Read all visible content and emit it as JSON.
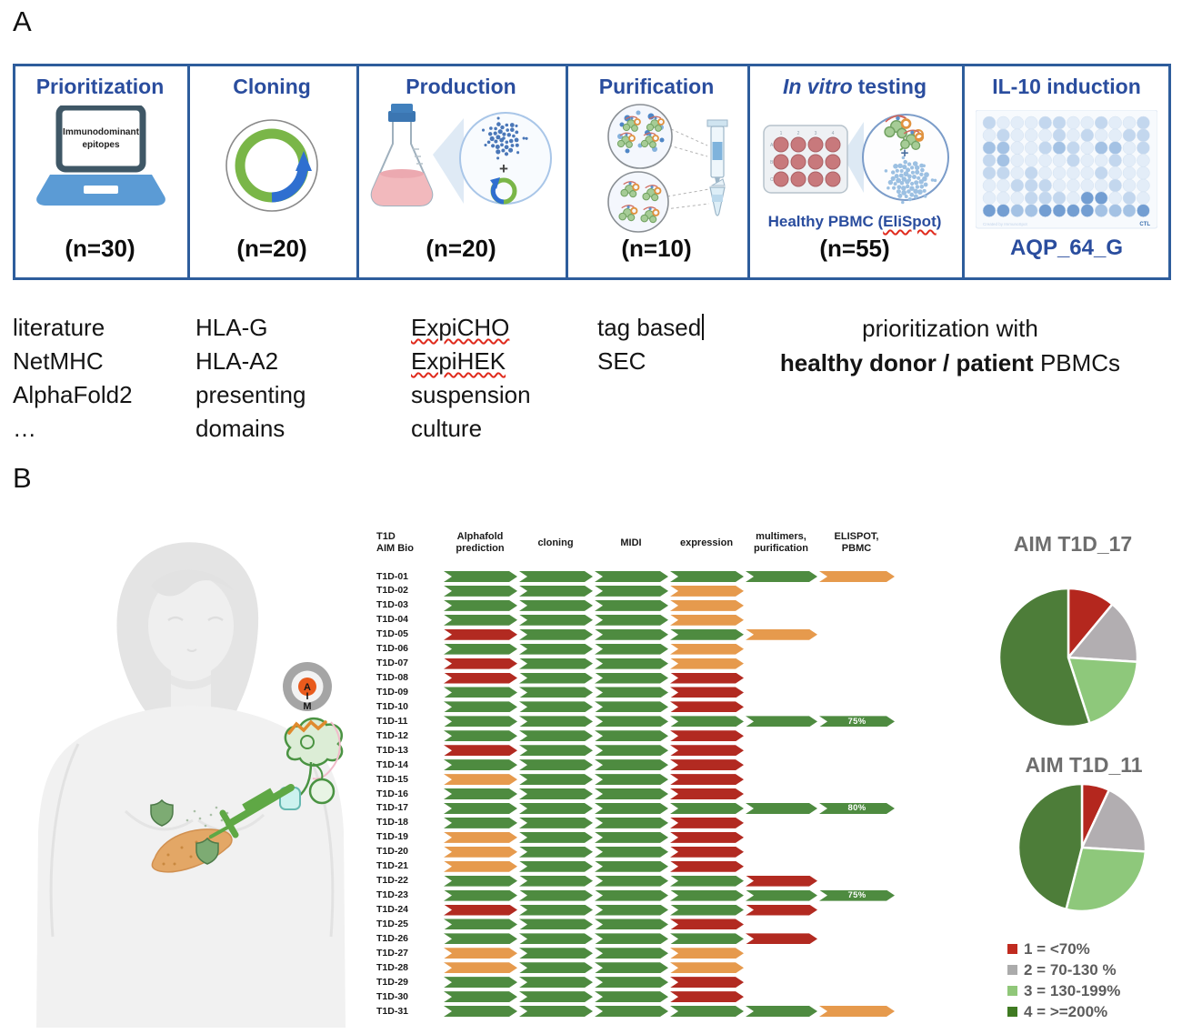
{
  "panel_a": {
    "label": "A",
    "steps": [
      {
        "title": "Prioritization",
        "n": "(n=30)",
        "icon": "laptop-epitopes-icon",
        "screen_lines": [
          "Immunodominant",
          "epitopes"
        ]
      },
      {
        "title": "Cloning",
        "n": "(n=20)",
        "icon": "plasmid-icon"
      },
      {
        "title": "Production",
        "n": "(n=20)",
        "icon": "flask-transfection-icon"
      },
      {
        "title": "Purification",
        "n": "(n=10)",
        "icon": "protein-purification-icon"
      },
      {
        "title_italic": "In vitro",
        "title_rest": "testing",
        "n": "(n=55)",
        "icon": "well-plate-elispot-icon",
        "caption_prefix": "Healthy PBMC (",
        "caption_wavy": "EliSpot",
        "caption_suffix": ")"
      },
      {
        "title": "IL-10 induction",
        "n": "AQP_64_G",
        "icon": "elispot-plate-image",
        "plate_rows": [
          "211122112112",
          "121112121122",
          "331123213312",
          "231111211211",
          "221211112111",
          "112221111211",
          "111222144121",
          "443344443334"
        ],
        "plate_credit": "Created by ImmunoSpot",
        "plate_footer": "CTL"
      }
    ],
    "notes": [
      {
        "lines": [
          {
            "text": "literature"
          },
          {
            "text": "NetMHC"
          },
          {
            "text": "AlphaFold2"
          },
          {
            "text": "…"
          }
        ]
      },
      {
        "lines": [
          {
            "text": "HLA-G"
          },
          {
            "text": "HLA-A2"
          },
          {
            "text": "presenting"
          },
          {
            "text": "domains"
          }
        ]
      },
      {
        "lines": [
          {
            "text": "ExpiCHO",
            "wavy": true
          },
          {
            "text": "ExpiHEK",
            "wavy": true
          },
          {
            "text": "suspension"
          },
          {
            "text": "culture"
          }
        ]
      },
      {
        "lines": [
          {
            "text": "tag based",
            "caret": true
          },
          {
            "text": "SEC"
          }
        ]
      }
    ],
    "right_note": {
      "line1": "prioritization with",
      "line2_parts": [
        {
          "text": "healthy donor / patient",
          "bold": true
        },
        {
          "text": " PBMCs",
          "bold": false
        }
      ]
    }
  },
  "panel_b": {
    "label": "B",
    "target": {
      "letters": [
        "A",
        "I",
        "M"
      ]
    },
    "status_colors": {
      "g": "#4e8b40",
      "r": "#b22a21",
      "o": "#e69a4d"
    },
    "legend": {
      "items": [
        {
          "color": "#c02b20",
          "label": "1 = <70%"
        },
        {
          "color": "#ababab",
          "label": "2 = 70-130 %"
        },
        {
          "color": "#90c779",
          "label": "3 = 130-199%"
        },
        {
          "color": "#3f7a22",
          "label": "4 = >=200%"
        }
      ]
    }
  },
  "chart_data": [
    {
      "type": "pie",
      "title": "AIM T1D_17",
      "values": [
        11,
        15,
        19,
        55
      ],
      "labels": [
        "1 = <70%",
        "2 = 70-130 %",
        "3 = 130-199%",
        "4 = >=200%"
      ],
      "colors": [
        "#b4271e",
        "#b2aeb1",
        "#8ec87b",
        "#4d7d39"
      ],
      "legend_position": "bottom-right"
    },
    {
      "type": "pie",
      "title": "AIM T1D_11",
      "values": [
        7,
        19,
        28,
        46
      ],
      "labels": [
        "1 = <70%",
        "2 = 70-130 %",
        "3 = 130-199%",
        "4 = >=200%"
      ],
      "colors": [
        "#b4271e",
        "#b2aeb1",
        "#8ec87b",
        "#4d7d39"
      ],
      "legend_position": "bottom-right"
    },
    {
      "type": "table",
      "row_header_lines": [
        "T1D",
        "AIM Bio"
      ],
      "header_lines": [
        [
          "Alphafold",
          "prediction"
        ],
        [
          "cloning"
        ],
        [
          "MIDI"
        ],
        [
          "expression"
        ],
        [
          "multimers,",
          "purification"
        ],
        [
          "ELISPOT,",
          "PBMC"
        ]
      ],
      "rows": [
        {
          "label": "T1D-01",
          "steps": [
            "g",
            "g",
            "g",
            "g",
            "g",
            "o"
          ]
        },
        {
          "label": "T1D-02",
          "steps": [
            "g",
            "g",
            "g",
            "o"
          ]
        },
        {
          "label": "T1D-03",
          "steps": [
            "g",
            "g",
            "g",
            "o"
          ]
        },
        {
          "label": "T1D-04",
          "steps": [
            "g",
            "g",
            "g",
            "o"
          ]
        },
        {
          "label": "T1D-05",
          "steps": [
            "r",
            "g",
            "g",
            "g",
            "o"
          ]
        },
        {
          "label": "T1D-06",
          "steps": [
            "g",
            "g",
            "g",
            "o"
          ]
        },
        {
          "label": "T1D-07",
          "steps": [
            "r",
            "g",
            "g",
            "o"
          ]
        },
        {
          "label": "T1D-08",
          "steps": [
            "r",
            "g",
            "g",
            "r"
          ]
        },
        {
          "label": "T1D-09",
          "steps": [
            "g",
            "g",
            "g",
            "r"
          ]
        },
        {
          "label": "T1D-10",
          "steps": [
            "g",
            "g",
            "g",
            "r"
          ]
        },
        {
          "label": "T1D-11",
          "steps": [
            "g",
            "g",
            "g",
            "g",
            "g",
            "g"
          ],
          "note": "75%"
        },
        {
          "label": "T1D-12",
          "steps": [
            "g",
            "g",
            "g",
            "r"
          ]
        },
        {
          "label": "T1D-13",
          "steps": [
            "r",
            "g",
            "g",
            "r"
          ]
        },
        {
          "label": "T1D-14",
          "steps": [
            "g",
            "g",
            "g",
            "r"
          ]
        },
        {
          "label": "T1D-15",
          "steps": [
            "o",
            "g",
            "g",
            "r"
          ]
        },
        {
          "label": "T1D-16",
          "steps": [
            "g",
            "g",
            "g",
            "r"
          ]
        },
        {
          "label": "T1D-17",
          "steps": [
            "g",
            "g",
            "g",
            "g",
            "g",
            "g"
          ],
          "note": "80%"
        },
        {
          "label": "T1D-18",
          "steps": [
            "g",
            "g",
            "g",
            "r"
          ]
        },
        {
          "label": "T1D-19",
          "steps": [
            "o",
            "g",
            "g",
            "r"
          ]
        },
        {
          "label": "T1D-20",
          "steps": [
            "o",
            "g",
            "g",
            "r"
          ]
        },
        {
          "label": "T1D-21",
          "steps": [
            "o",
            "g",
            "g",
            "r"
          ]
        },
        {
          "label": "T1D-22",
          "steps": [
            "g",
            "g",
            "g",
            "g",
            "r"
          ]
        },
        {
          "label": "T1D-23",
          "steps": [
            "g",
            "g",
            "g",
            "g",
            "g",
            "g"
          ],
          "note": "75%"
        },
        {
          "label": "T1D-24",
          "steps": [
            "r",
            "g",
            "g",
            "g",
            "r"
          ]
        },
        {
          "label": "T1D-25",
          "steps": [
            "g",
            "g",
            "g",
            "r"
          ]
        },
        {
          "label": "T1D-26",
          "steps": [
            "g",
            "g",
            "g",
            "g",
            "r"
          ]
        },
        {
          "label": "T1D-27",
          "steps": [
            "o",
            "g",
            "g",
            "o"
          ]
        },
        {
          "label": "T1D-28",
          "steps": [
            "o",
            "g",
            "g",
            "o"
          ]
        },
        {
          "label": "T1D-29",
          "steps": [
            "g",
            "g",
            "g",
            "r"
          ]
        },
        {
          "label": "T1D-30",
          "steps": [
            "g",
            "g",
            "g",
            "r"
          ]
        },
        {
          "label": "T1D-31",
          "steps": [
            "g",
            "g",
            "g",
            "g",
            "g",
            "o"
          ]
        }
      ]
    }
  ]
}
